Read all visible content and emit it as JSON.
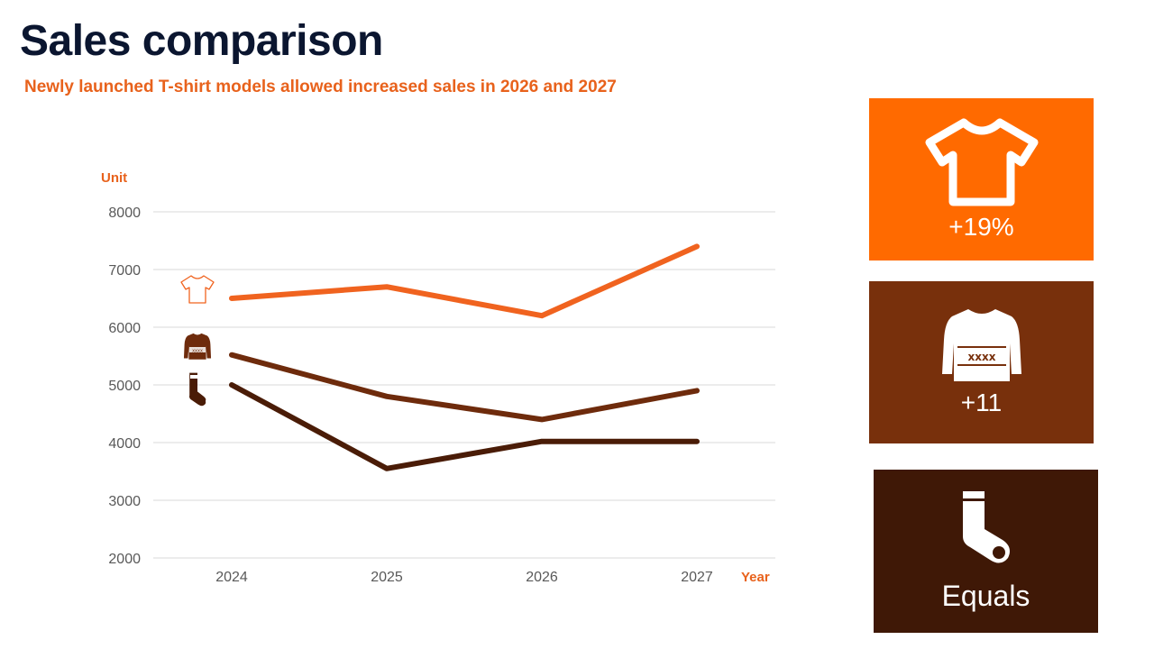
{
  "title": "Sales comparison",
  "subtitle": "Newly launched T-shirt models allowed increased sales in 2026 and 2027",
  "colors": {
    "tshirt": "#f0631f",
    "sweater": "#6e2b0c",
    "socks": "#4a1c07",
    "card_tshirt": "#ff6a00",
    "card_sweater": "#78300c",
    "card_socks": "#3f1806",
    "accent": "#e8621c"
  },
  "cards": [
    {
      "icon": "tshirt-icon",
      "value": "+19%"
    },
    {
      "icon": "sweater-icon",
      "value": "+11"
    },
    {
      "icon": "socks-icon",
      "value": "Equals"
    }
  ],
  "chart_data": {
    "type": "line",
    "ylabel": "Unit",
    "xlabel": "Year",
    "ylim": [
      2000,
      8000
    ],
    "yticks": [
      2000,
      3000,
      4000,
      5000,
      6000,
      7000,
      8000
    ],
    "categories": [
      "2024",
      "2025",
      "2026",
      "2027"
    ],
    "grid": true,
    "series": [
      {
        "key": "tshirt",
        "icon": "tshirt-icon",
        "values": [
          6500,
          6700,
          6200,
          7400
        ]
      },
      {
        "key": "sweater",
        "icon": "sweater-icon",
        "values": [
          5520,
          4800,
          4400,
          4900
        ]
      },
      {
        "key": "socks",
        "icon": "socks-icon",
        "values": [
          5000,
          3550,
          4020,
          4020
        ]
      }
    ]
  }
}
